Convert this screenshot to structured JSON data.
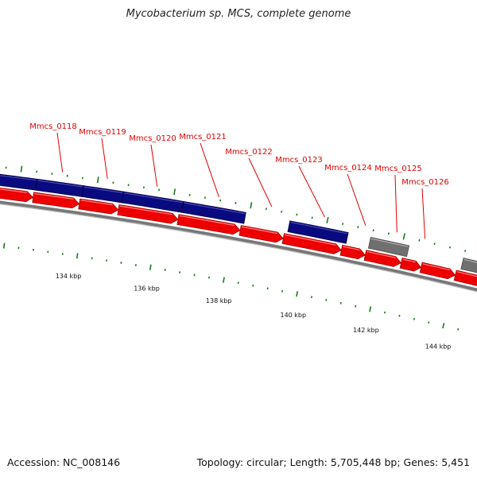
{
  "title": "Mycobacterium sp. MCS, complete genome",
  "footer": {
    "accession": "Accession: NC_008146",
    "stats": "Topology: circular; Length: 5,705,448 bp; Genes: 5,451"
  },
  "colors": {
    "forward_cds": "#0a0a80",
    "reverse_cds": "#ee0000",
    "other_feature": "#707070",
    "backbone": "#8a8a8a",
    "tick": "#1a7a1a",
    "label": "#e00000"
  },
  "position_labels": [
    "134 kbp",
    "136 kbp",
    "138 kbp",
    "140 kbp",
    "142 kbp",
    "144 kbp"
  ],
  "gene_labels": [
    "Mmcs_0118",
    "Mmcs_0119",
    "Mmcs_0120",
    "Mmcs_0121",
    "Mmcs_0122",
    "Mmcs_0123",
    "Mmcs_0124",
    "Mmcs_0125",
    "Mmcs_0126"
  ]
}
